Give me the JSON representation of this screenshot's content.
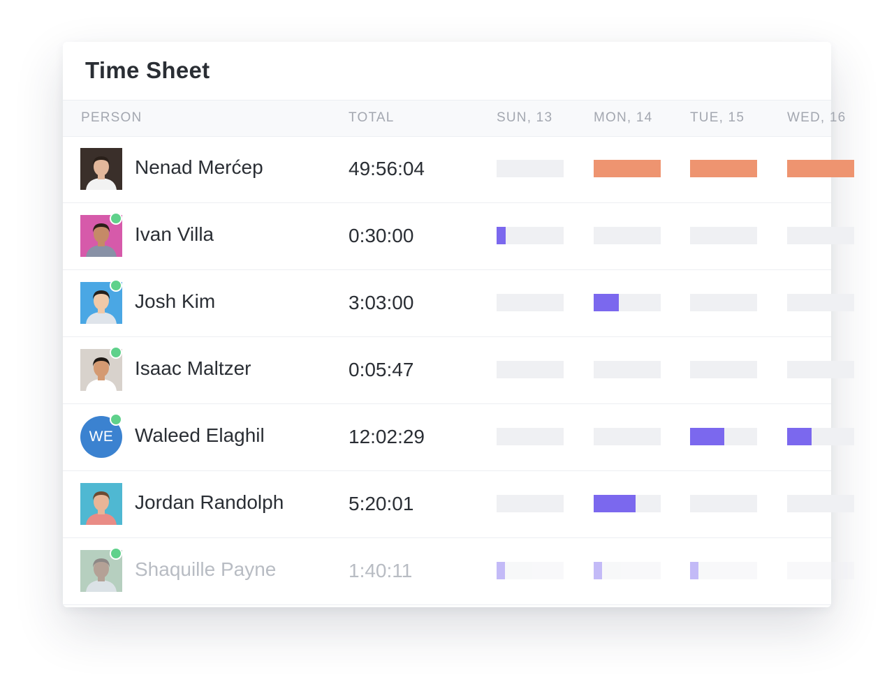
{
  "title": "Time Sheet",
  "columns": {
    "person": "PERSON",
    "total": "TOTAL",
    "days": [
      "SUN, 13",
      "MON, 14",
      "TUE, 15",
      "WED, 16"
    ]
  },
  "colors": {
    "orange": "#ee9470",
    "purple": "#7b68ee",
    "online": "#5fd18b",
    "track": "#eff0f3"
  },
  "rows": [
    {
      "name": "Nenad Merćep",
      "total": "49:56:04",
      "online": false,
      "avatar": {
        "type": "photo",
        "bg": "#3a2f2a",
        "skin": "#e2b79b",
        "hair": "#2a201a",
        "shirt": "#f2f2f2"
      },
      "bars": [
        {
          "fill": 0,
          "color": "orange"
        },
        {
          "fill": 1,
          "color": "orange"
        },
        {
          "fill": 1,
          "color": "orange"
        },
        {
          "fill": 1,
          "color": "orange"
        }
      ]
    },
    {
      "name": "Ivan Villa",
      "total": "0:30:00",
      "online": true,
      "avatar": {
        "type": "photo",
        "bg": "#d65aaa",
        "skin": "#c58a67",
        "hair": "#2b1f18",
        "shirt": "#8891a6"
      },
      "bars": [
        {
          "fill": 0.14,
          "color": "purple"
        },
        {
          "fill": 0,
          "color": "purple"
        },
        {
          "fill": 0,
          "color": "purple"
        },
        {
          "fill": 0,
          "color": "purple"
        }
      ]
    },
    {
      "name": "Josh Kim",
      "total": "3:03:00",
      "online": true,
      "avatar": {
        "type": "photo",
        "bg": "#4aa7e4",
        "skin": "#f0c9a8",
        "hair": "#25201c",
        "shirt": "#dfe4ea"
      },
      "bars": [
        {
          "fill": 0,
          "color": "purple"
        },
        {
          "fill": 0.38,
          "color": "purple"
        },
        {
          "fill": 0,
          "color": "purple"
        },
        {
          "fill": 0,
          "color": "purple"
        }
      ]
    },
    {
      "name": "Isaac Maltzer",
      "total": "0:05:47",
      "online": true,
      "avatar": {
        "type": "photo",
        "bg": "#d8d2cc",
        "skin": "#d49a72",
        "hair": "#1e1814",
        "shirt": "#ffffff"
      },
      "bars": [
        {
          "fill": 0,
          "color": "purple"
        },
        {
          "fill": 0,
          "color": "purple"
        },
        {
          "fill": 0,
          "color": "purple"
        },
        {
          "fill": 0,
          "color": "purple"
        }
      ]
    },
    {
      "name": "Waleed Elaghil",
      "total": "12:02:29",
      "online": true,
      "avatar": {
        "type": "initials",
        "initials": "WE",
        "bg": "#3b82d0"
      },
      "bars": [
        {
          "fill": 0,
          "color": "purple"
        },
        {
          "fill": 0,
          "color": "purple"
        },
        {
          "fill": 0.51,
          "color": "purple"
        },
        {
          "fill": 0.36,
          "color": "purple"
        }
      ]
    },
    {
      "name": "Jordan Randolph",
      "total": "5:20:01",
      "online": false,
      "avatar": {
        "type": "photo",
        "bg": "#4fb8d2",
        "skin": "#e8b597",
        "hair": "#6b4a32",
        "shirt": "#e98c86"
      },
      "bars": [
        {
          "fill": 0,
          "color": "purple"
        },
        {
          "fill": 0.62,
          "color": "purple"
        },
        {
          "fill": 0,
          "color": "purple"
        },
        {
          "fill": 0,
          "color": "purple"
        }
      ]
    },
    {
      "name": "Shaquille Payne",
      "total": "1:40:11",
      "online": true,
      "faded": true,
      "avatar": {
        "type": "photo",
        "bg": "#6fa080",
        "skin": "#6b4530",
        "hair": "#1d1410",
        "shirt": "#b9c6cf"
      },
      "bars": [
        {
          "fill": 0.13,
          "color": "purple"
        },
        {
          "fill": 0.13,
          "color": "purple"
        },
        {
          "fill": 0.13,
          "color": "purple"
        },
        {
          "fill": 0,
          "color": "purple"
        }
      ]
    }
  ]
}
